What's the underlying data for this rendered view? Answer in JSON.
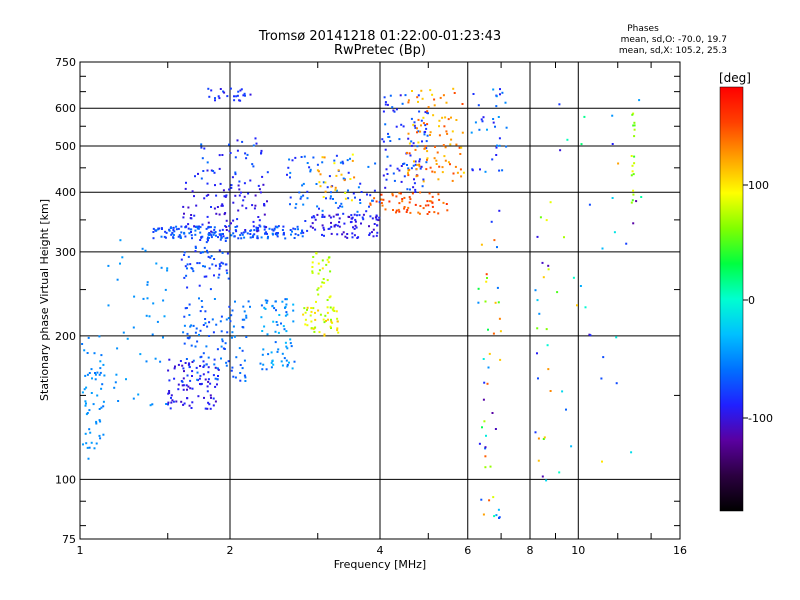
{
  "title_line1": "Tromsø 20141218 01:22:00-01:23:43",
  "title_line2": "RwPretec (Bp)",
  "stats": {
    "heading": "Phases",
    "line1": "mean, sd,O: -70.0, 19.7",
    "line2": "mean, sd,X: 105.2, 25.3"
  },
  "colorbar": {
    "unit": "[deg]",
    "ticks": [
      "100",
      "0",
      "-100"
    ],
    "min": -180,
    "max": 180,
    "colors": [
      "#000000",
      "#2b0040",
      "#5a00a0",
      "#2020ff",
      "#0070ff",
      "#00c0ff",
      "#00ffd0",
      "#00ff40",
      "#80ff00",
      "#ffff00",
      "#ffa000",
      "#ff4000",
      "#ff0000"
    ]
  },
  "chart_data": {
    "type": "scatter",
    "xlabel": "Frequency [MHz]",
    "ylabel": "Stationary phase Virtual Height [km]",
    "xscale": "log",
    "yscale": "log",
    "xlim": [
      1,
      16
    ],
    "ylim": [
      75,
      750
    ],
    "xticks": [
      "1",
      "2",
      "4",
      "6",
      "8",
      "10",
      "16"
    ],
    "xtick_values": [
      1,
      2,
      4,
      6,
      8,
      10,
      16
    ],
    "yticks": [
      "75",
      "100",
      "200",
      "300",
      "400",
      "500",
      "600",
      "750"
    ],
    "ytick_values": [
      75,
      100,
      200,
      300,
      400,
      500,
      600,
      750
    ],
    "grid": true,
    "point_groups": [
      {
        "x": [
          1.0,
          1.12
        ],
        "y": [
          110,
          200
        ],
        "phase": [
          -60,
          -40
        ],
        "n": 60
      },
      {
        "x": [
          1.1,
          1.5
        ],
        "y": [
          140,
          330
        ],
        "phase": [
          -55,
          -40
        ],
        "n": 45
      },
      {
        "x": [
          1.5,
          1.9
        ],
        "y": [
          140,
          180
        ],
        "phase": [
          -110,
          -80
        ],
        "n": 90
      },
      {
        "x": [
          1.6,
          2.2
        ],
        "y": [
          160,
          240
        ],
        "phase": [
          -80,
          -50
        ],
        "n": 110
      },
      {
        "x": [
          1.6,
          2.0
        ],
        "y": [
          250,
          330
        ],
        "phase": [
          -90,
          -60
        ],
        "n": 70
      },
      {
        "x": [
          1.4,
          2.8
        ],
        "y": [
          320,
          340
        ],
        "phase": [
          -85,
          -55
        ],
        "n": 170
      },
      {
        "x": [
          1.6,
          2.4
        ],
        "y": [
          330,
          420
        ],
        "phase": [
          -110,
          -80
        ],
        "n": 90
      },
      {
        "x": [
          1.7,
          2.4
        ],
        "y": [
          420,
          520
        ],
        "phase": [
          -100,
          -60
        ],
        "n": 40
      },
      {
        "x": [
          1.8,
          2.2
        ],
        "y": [
          620,
          660
        ],
        "phase": [
          -100,
          -70
        ],
        "n": 25
      },
      {
        "x": [
          2.3,
          2.7
        ],
        "y": [
          170,
          240
        ],
        "phase": [
          -70,
          -30
        ],
        "n": 70
      },
      {
        "x": [
          2.8,
          3.3
        ],
        "y": [
          200,
          230
        ],
        "phase": [
          60,
          110
        ],
        "n": 50
      },
      {
        "x": [
          2.9,
          3.2
        ],
        "y": [
          230,
          300
        ],
        "phase": [
          60,
          100
        ],
        "n": 30
      },
      {
        "x": [
          2.8,
          4.0
        ],
        "y": [
          320,
          360
        ],
        "phase": [
          -110,
          -80
        ],
        "n": 90
      },
      {
        "x": [
          3.8,
          5.5
        ],
        "y": [
          360,
          400
        ],
        "phase": [
          130,
          160
        ],
        "n": 60
      },
      {
        "x": [
          2.6,
          4.0
        ],
        "y": [
          360,
          480
        ],
        "phase": [
          -90,
          -50
        ],
        "n": 80
      },
      {
        "x": [
          3.0,
          3.6
        ],
        "y": [
          380,
          480
        ],
        "phase": [
          80,
          130
        ],
        "n": 25
      },
      {
        "x": [
          4.0,
          5.0
        ],
        "y": [
          400,
          640
        ],
        "phase": [
          -100,
          -60
        ],
        "n": 90
      },
      {
        "x": [
          4.5,
          5.9
        ],
        "y": [
          420,
          660
        ],
        "phase": [
          100,
          150
        ],
        "n": 100
      },
      {
        "x": [
          6.1,
          7.2
        ],
        "y": [
          440,
          660
        ],
        "phase": [
          -100,
          -40
        ],
        "n": 35
      },
      {
        "x": [
          6.3,
          7.0
        ],
        "y": [
          80,
          420
        ],
        "phase": [
          -120,
          150
        ],
        "n": 45
      },
      {
        "x": [
          8.2,
          8.8
        ],
        "y": [
          90,
          420
        ],
        "phase": [
          -150,
          140
        ],
        "n": 25
      },
      {
        "x": [
          9.0,
          13.5
        ],
        "y": [
          100,
          640
        ],
        "phase": [
          -120,
          120
        ],
        "n": 35
      },
      {
        "x": [
          12.8,
          13.0
        ],
        "y": [
          380,
          600
        ],
        "phase": [
          40,
          90
        ],
        "n": 18
      }
    ]
  }
}
